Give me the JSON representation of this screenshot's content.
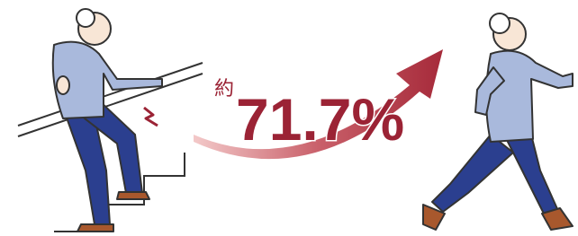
{
  "annotation": {
    "prefix": "約",
    "value": "71.7%"
  }
}
